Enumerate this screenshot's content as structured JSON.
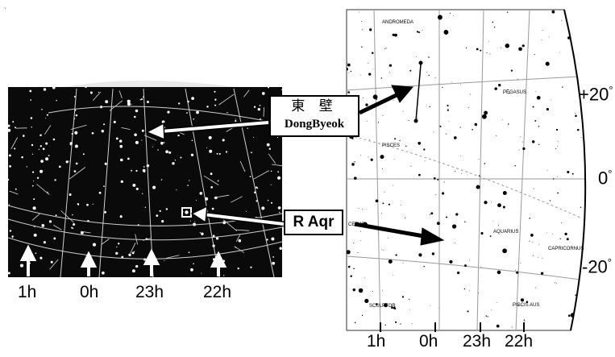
{
  "corner_mark": "·",
  "callouts": {
    "dongbyeok": {
      "hanja": "東 壁",
      "name": "DongByeok"
    },
    "raqr": {
      "name": "R Aqr"
    }
  },
  "left_map": {
    "hour_labels": [
      "1h",
      "0h",
      "23h",
      "22h"
    ]
  },
  "right_map": {
    "hour_labels": [
      "1h",
      "0h",
      "23h",
      "22h"
    ],
    "declination_labels": [
      "+20",
      "0",
      "-20"
    ],
    "degree_symbol": "°",
    "constellations": [
      "ANDROMEDA",
      "PEGASUS",
      "PISCES",
      "AQUARIUS",
      "CAPRICORNUS",
      "SCULPTOR",
      "PISCIS AUS",
      "CETUS"
    ]
  },
  "colors": {
    "ink": "#000000",
    "paper": "#ffffff",
    "sky": "#0a0a0a",
    "grid": "#9a9a9a"
  }
}
